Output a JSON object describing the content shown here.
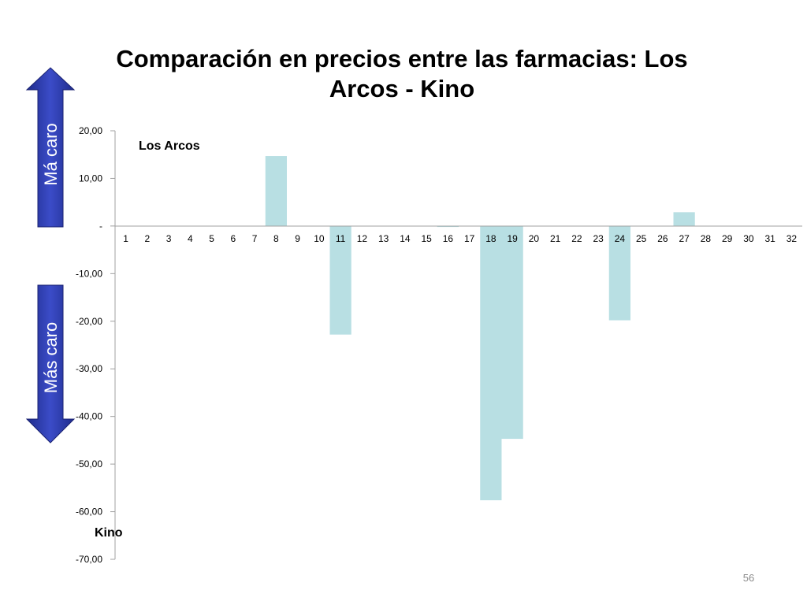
{
  "slide": {
    "page_number": "56"
  },
  "arrows": {
    "up_label": "Má caro",
    "down_label": "Más caro",
    "color": "#2b3aa8"
  },
  "chart_data": {
    "type": "bar",
    "title": "Comparación en precios entre las farmacias: Los Arcos - Kino",
    "categories": [
      "1",
      "2",
      "3",
      "4",
      "5",
      "6",
      "7",
      "8",
      "9",
      "10",
      "11",
      "12",
      "13",
      "14",
      "15",
      "16",
      "17",
      "18",
      "19",
      "20",
      "21",
      "22",
      "23",
      "24",
      "25",
      "26",
      "27",
      "28",
      "29",
      "30",
      "31",
      "32"
    ],
    "values": [
      0,
      0,
      0,
      0,
      0,
      0,
      0,
      14.7,
      0,
      0,
      -22.8,
      0,
      0,
      0,
      0,
      -0.2,
      0,
      -57.6,
      -44.7,
      0,
      0,
      0,
      0,
      -19.8,
      0,
      0,
      2.9,
      0,
      0,
      0,
      0,
      0
    ],
    "ylim": [
      -70,
      20
    ],
    "yticks": [
      {
        "value": 20,
        "label": "20,00"
      },
      {
        "value": 10,
        "label": "10,00"
      },
      {
        "value": 0,
        "label": "-"
      },
      {
        "value": -10,
        "label": "-10,00"
      },
      {
        "value": -20,
        "label": "-20,00"
      },
      {
        "value": -30,
        "label": "-30,00"
      },
      {
        "value": -40,
        "label": "-40,00"
      },
      {
        "value": -50,
        "label": "-50,00"
      },
      {
        "value": -60,
        "label": "-60,00"
      },
      {
        "value": -70,
        "label": "-70,00"
      }
    ],
    "annotations": {
      "top": "Los Arcos",
      "bottom": "Kino"
    },
    "bar_color": "#b8dfe3",
    "grid": false
  }
}
